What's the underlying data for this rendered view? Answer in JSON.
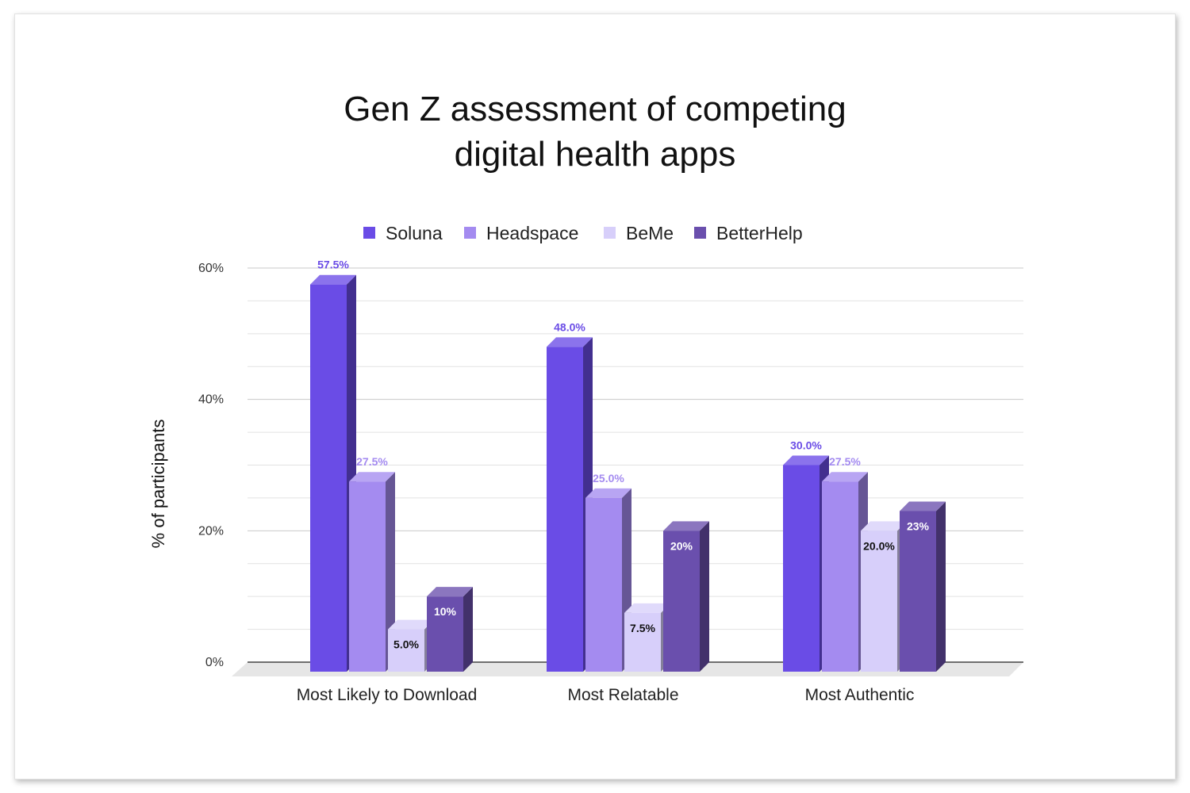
{
  "chart_data": {
    "type": "bar",
    "title_lines": [
      "Gen Z assessment of competing",
      "digital health apps"
    ],
    "ylabel": "% of participants",
    "xlabel": "",
    "ylim": [
      0,
      60
    ],
    "yticks": [
      "0%",
      "20%",
      "40%",
      "60%"
    ],
    "ytick_values": [
      0,
      20,
      40,
      60
    ],
    "grid": true,
    "legend_position": "top",
    "style": "3d-clustered-column",
    "categories": [
      "Most Likely to Download",
      "Most Relatable",
      "Most Authentic"
    ],
    "series": [
      {
        "name": "Soluna",
        "color": "#6a4ce6",
        "label_color": "#6a4ce6",
        "values": [
          57.5,
          48.0,
          30.0
        ],
        "labels": [
          "57.5%",
          "48.0%",
          "30.0%"
        ]
      },
      {
        "name": "Headspace",
        "color": "#a48bf0",
        "label_color": "#a48bf0",
        "values": [
          27.5,
          25.0,
          27.5
        ],
        "labels": [
          "27.5%",
          "25.0%",
          "27.5%"
        ]
      },
      {
        "name": "BeMe",
        "color": "#d7cffa",
        "label_color": "#111111",
        "values": [
          5.0,
          7.5,
          20.0
        ],
        "labels": [
          "5.0%",
          "7.5%",
          "20.0%"
        ]
      },
      {
        "name": "BetterHelp",
        "color": "#6a4fad",
        "label_color": "#ffffff",
        "values": [
          10,
          20,
          23
        ],
        "labels": [
          "10%",
          "20%",
          "23%"
        ]
      }
    ]
  }
}
